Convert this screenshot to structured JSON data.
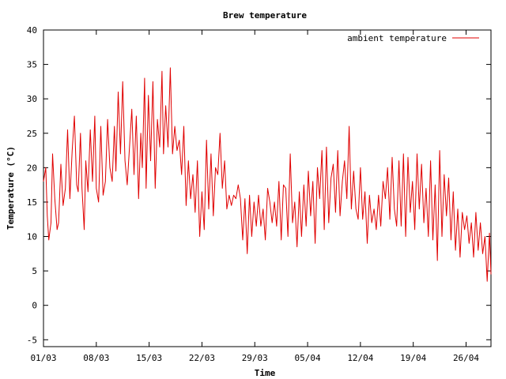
{
  "chart_data": {
    "type": "line",
    "title": "Brew temperature",
    "xlabel": "Time",
    "ylabel": "Temperature (°C)",
    "x_ticks": [
      {
        "day": 1,
        "label": "01/03"
      },
      {
        "day": 8,
        "label": "08/03"
      },
      {
        "day": 15,
        "label": "15/03"
      },
      {
        "day": 22,
        "label": "22/03"
      },
      {
        "day": 29,
        "label": "29/03"
      },
      {
        "day": 36,
        "label": "05/04"
      },
      {
        "day": 43,
        "label": "12/04"
      },
      {
        "day": 50,
        "label": "19/04"
      },
      {
        "day": 57,
        "label": "26/04"
      }
    ],
    "xlim": [
      1,
      60.3
    ],
    "ylim": [
      -6,
      40
    ],
    "y_ticks": [
      -5,
      0,
      5,
      10,
      15,
      20,
      25,
      30,
      35,
      40
    ],
    "grid": false,
    "legend_position": "top-right",
    "series": [
      {
        "name": "ambient temperature",
        "color": "#e00000",
        "points": [
          [
            1.0,
            18.0
          ],
          [
            1.3,
            20.0
          ],
          [
            1.5,
            13.0
          ],
          [
            1.7,
            9.5
          ],
          [
            2.0,
            12.0
          ],
          [
            2.2,
            22.0
          ],
          [
            2.5,
            15.5
          ],
          [
            2.8,
            11.0
          ],
          [
            3.0,
            12.0
          ],
          [
            3.3,
            20.5
          ],
          [
            3.6,
            14.5
          ],
          [
            3.9,
            17.0
          ],
          [
            4.2,
            25.5
          ],
          [
            4.5,
            15.5
          ],
          [
            4.8,
            22.5
          ],
          [
            5.1,
            27.5
          ],
          [
            5.4,
            17.5
          ],
          [
            5.6,
            16.5
          ],
          [
            5.9,
            25.0
          ],
          [
            6.1,
            17.0
          ],
          [
            6.4,
            11.0
          ],
          [
            6.6,
            21.0
          ],
          [
            6.9,
            16.5
          ],
          [
            7.2,
            25.5
          ],
          [
            7.5,
            18.0
          ],
          [
            7.8,
            27.5
          ],
          [
            8.0,
            17.0
          ],
          [
            8.3,
            15.0
          ],
          [
            8.6,
            26.0
          ],
          [
            8.9,
            16.0
          ],
          [
            9.2,
            18.0
          ],
          [
            9.5,
            27.0
          ],
          [
            9.8,
            20.0
          ],
          [
            10.1,
            18.0
          ],
          [
            10.4,
            26.0
          ],
          [
            10.6,
            19.5
          ],
          [
            10.9,
            31.0
          ],
          [
            11.2,
            22.0
          ],
          [
            11.5,
            32.5
          ],
          [
            11.8,
            21.0
          ],
          [
            12.1,
            17.5
          ],
          [
            12.4,
            23.0
          ],
          [
            12.7,
            28.5
          ],
          [
            13.0,
            19.0
          ],
          [
            13.3,
            27.5
          ],
          [
            13.6,
            15.5
          ],
          [
            13.9,
            25.0
          ],
          [
            14.1,
            20.0
          ],
          [
            14.4,
            33.0
          ],
          [
            14.6,
            17.0
          ],
          [
            14.9,
            30.5
          ],
          [
            15.2,
            21.0
          ],
          [
            15.5,
            32.5
          ],
          [
            15.8,
            17.0
          ],
          [
            16.1,
            27.0
          ],
          [
            16.4,
            23.0
          ],
          [
            16.7,
            34.0
          ],
          [
            16.9,
            22.0
          ],
          [
            17.2,
            29.0
          ],
          [
            17.5,
            23.0
          ],
          [
            17.8,
            34.5
          ],
          [
            18.1,
            22.0
          ],
          [
            18.4,
            26.0
          ],
          [
            18.7,
            22.5
          ],
          [
            19.0,
            24.0
          ],
          [
            19.3,
            19.0
          ],
          [
            19.6,
            26.0
          ],
          [
            19.9,
            14.5
          ],
          [
            20.2,
            21.0
          ],
          [
            20.5,
            15.5
          ],
          [
            20.8,
            19.0
          ],
          [
            21.1,
            13.5
          ],
          [
            21.4,
            21.0
          ],
          [
            21.7,
            10.0
          ],
          [
            22.0,
            16.5
          ],
          [
            22.3,
            11.0
          ],
          [
            22.6,
            24.0
          ],
          [
            22.9,
            14.0
          ],
          [
            23.2,
            22.0
          ],
          [
            23.5,
            13.0
          ],
          [
            23.8,
            20.0
          ],
          [
            24.1,
            19.0
          ],
          [
            24.4,
            25.0
          ],
          [
            24.7,
            17.0
          ],
          [
            25.0,
            21.0
          ],
          [
            25.3,
            14.0
          ],
          [
            25.6,
            16.0
          ],
          [
            25.9,
            14.5
          ],
          [
            26.2,
            16.0
          ],
          [
            26.5,
            15.5
          ],
          [
            26.8,
            17.5
          ],
          [
            27.1,
            15.5
          ],
          [
            27.4,
            9.5
          ],
          [
            27.7,
            15.5
          ],
          [
            28.0,
            7.5
          ],
          [
            28.3,
            16.0
          ],
          [
            28.6,
            10.0
          ],
          [
            28.9,
            15.0
          ],
          [
            29.2,
            11.5
          ],
          [
            29.5,
            16.0
          ],
          [
            29.8,
            11.5
          ],
          [
            30.1,
            14.0
          ],
          [
            30.4,
            9.5
          ],
          [
            30.7,
            17.0
          ],
          [
            31.0,
            15.0
          ],
          [
            31.3,
            12.0
          ],
          [
            31.6,
            15.0
          ],
          [
            31.9,
            11.5
          ],
          [
            32.2,
            18.0
          ],
          [
            32.5,
            9.5
          ],
          [
            32.8,
            17.5
          ],
          [
            33.1,
            17.0
          ],
          [
            33.4,
            10.0
          ],
          [
            33.7,
            22.0
          ],
          [
            34.0,
            12.0
          ],
          [
            34.3,
            15.0
          ],
          [
            34.6,
            8.5
          ],
          [
            34.9,
            16.5
          ],
          [
            35.2,
            10.0
          ],
          [
            35.5,
            17.5
          ],
          [
            35.8,
            11.5
          ],
          [
            36.1,
            19.5
          ],
          [
            36.4,
            13.0
          ],
          [
            36.7,
            18.0
          ],
          [
            37.0,
            9.0
          ],
          [
            37.3,
            20.0
          ],
          [
            37.6,
            15.5
          ],
          [
            37.9,
            22.5
          ],
          [
            38.2,
            11.0
          ],
          [
            38.5,
            23.0
          ],
          [
            38.8,
            12.0
          ],
          [
            39.1,
            18.5
          ],
          [
            39.4,
            20.5
          ],
          [
            39.7,
            13.5
          ],
          [
            40.0,
            22.5
          ],
          [
            40.3,
            13.0
          ],
          [
            40.6,
            18.0
          ],
          [
            40.9,
            21.0
          ],
          [
            41.2,
            15.5
          ],
          [
            41.5,
            26.0
          ],
          [
            41.8,
            14.0
          ],
          [
            42.1,
            19.5
          ],
          [
            42.4,
            14.0
          ],
          [
            42.7,
            12.5
          ],
          [
            43.0,
            20.0
          ],
          [
            43.3,
            12.5
          ],
          [
            43.6,
            16.5
          ],
          [
            43.9,
            9.0
          ],
          [
            44.2,
            16.0
          ],
          [
            44.5,
            12.0
          ],
          [
            44.8,
            14.0
          ],
          [
            45.1,
            11.0
          ],
          [
            45.4,
            16.0
          ],
          [
            45.7,
            11.5
          ],
          [
            46.0,
            18.0
          ],
          [
            46.3,
            15.5
          ],
          [
            46.6,
            20.0
          ],
          [
            46.9,
            12.5
          ],
          [
            47.2,
            21.5
          ],
          [
            47.5,
            14.0
          ],
          [
            47.8,
            11.5
          ],
          [
            48.1,
            21.0
          ],
          [
            48.4,
            11.5
          ],
          [
            48.7,
            22.0
          ],
          [
            49.0,
            10.0
          ],
          [
            49.3,
            21.5
          ],
          [
            49.6,
            13.5
          ],
          [
            49.9,
            18.0
          ],
          [
            50.2,
            11.0
          ],
          [
            50.5,
            22.0
          ],
          [
            50.8,
            14.0
          ],
          [
            51.1,
            20.5
          ],
          [
            51.4,
            12.0
          ],
          [
            51.7,
            17.0
          ],
          [
            52.0,
            10.0
          ],
          [
            52.3,
            21.0
          ],
          [
            52.6,
            9.5
          ],
          [
            52.9,
            17.5
          ],
          [
            53.2,
            6.5
          ],
          [
            53.5,
            22.5
          ],
          [
            53.8,
            10.0
          ],
          [
            54.1,
            19.0
          ],
          [
            54.4,
            13.0
          ],
          [
            54.7,
            18.5
          ],
          [
            55.0,
            9.5
          ],
          [
            55.3,
            16.5
          ],
          [
            55.6,
            8.0
          ],
          [
            55.9,
            14.0
          ],
          [
            56.2,
            7.0
          ],
          [
            56.5,
            13.5
          ],
          [
            56.8,
            11.0
          ],
          [
            57.1,
            13.0
          ],
          [
            57.4,
            9.0
          ],
          [
            57.7,
            12.0
          ],
          [
            58.0,
            7.0
          ],
          [
            58.3,
            13.5
          ],
          [
            58.6,
            8.0
          ],
          [
            58.9,
            12.0
          ],
          [
            59.2,
            7.5
          ],
          [
            59.5,
            10.0
          ],
          [
            59.8,
            3.5
          ],
          [
            60.1,
            10.5
          ],
          [
            60.3,
            4.5
          ]
        ]
      }
    ]
  }
}
